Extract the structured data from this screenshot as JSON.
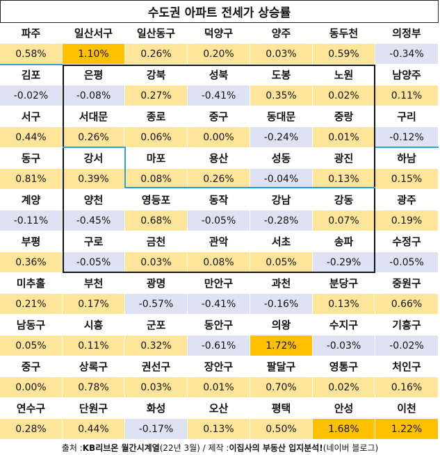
{
  "title": "수도권 아파트 전세가 상승률",
  "colors": {
    "positive": "#ffe599",
    "negative": "#dde3f3",
    "highlight": "#ffc000",
    "divider": "#2e9fd8"
  },
  "rows": [
    [
      [
        "파주",
        "0.58%"
      ],
      [
        "일산서구",
        "1.10%"
      ],
      [
        "일산동구",
        "0.26%"
      ],
      [
        "덕양구",
        "0.20%"
      ],
      [
        "양주",
        "0.03%"
      ],
      [
        "동두천",
        "0.59%"
      ],
      [
        "의정부",
        "-0.34%"
      ]
    ],
    [
      [
        "김포",
        "-0.02%"
      ],
      [
        "은평",
        "-0.08%"
      ],
      [
        "강북",
        "0.27%"
      ],
      [
        "성북",
        "-0.41%"
      ],
      [
        "도봉",
        "0.35%"
      ],
      [
        "노원",
        "0.02%"
      ],
      [
        "남양주",
        "0.11%"
      ]
    ],
    [
      [
        "서구",
        "0.44%"
      ],
      [
        "서대문",
        "0.26%"
      ],
      [
        "종로",
        "0.06%"
      ],
      [
        "중구",
        "0.00%"
      ],
      [
        "동대문",
        "-0.24%"
      ],
      [
        "중랑",
        "0.01%"
      ],
      [
        "구리",
        "-0.12%"
      ]
    ],
    [
      [
        "동구",
        "0.81%"
      ],
      [
        "강서",
        "0.39%"
      ],
      [
        "마포",
        "0.08%"
      ],
      [
        "용산",
        "0.26%"
      ],
      [
        "성동",
        "-0.04%"
      ],
      [
        "광진",
        "0.13%"
      ],
      [
        "하남",
        "0.15%"
      ]
    ],
    [
      [
        "계양",
        "-0.11%"
      ],
      [
        "양천",
        "-0.45%"
      ],
      [
        "영등포",
        "0.68%"
      ],
      [
        "동작",
        "-0.05%"
      ],
      [
        "강남",
        "-0.28%"
      ],
      [
        "강동",
        "0.07%"
      ],
      [
        "광주",
        "0.19%"
      ]
    ],
    [
      [
        "부평",
        "0.36%"
      ],
      [
        "구로",
        "-0.05%"
      ],
      [
        "금천",
        "0.03%"
      ],
      [
        "관악",
        "0.08%"
      ],
      [
        "서초",
        "0.05%"
      ],
      [
        "송파",
        "-0.29%"
      ],
      [
        "수정구",
        "-0.05%"
      ]
    ],
    [
      [
        "미추홀",
        "0.21%"
      ],
      [
        "부천",
        "0.17%"
      ],
      [
        "광명",
        "-0.57%"
      ],
      [
        "만안구",
        "-0.41%"
      ],
      [
        "과천",
        "-0.16%"
      ],
      [
        "분당구",
        "0.13%"
      ],
      [
        "중원구",
        "0.66%"
      ]
    ],
    [
      [
        "남동구",
        "0.05%"
      ],
      [
        "시흥",
        "0.11%"
      ],
      [
        "군포",
        "0.32%"
      ],
      [
        "동안구",
        "-0.61%"
      ],
      [
        "의왕",
        "1.72%"
      ],
      [
        "수지구",
        "-0.03%"
      ],
      [
        "기흥구",
        "-0.02%"
      ]
    ],
    [
      [
        "중구",
        "0.00%"
      ],
      [
        "상록구",
        "0.78%"
      ],
      [
        "권선구",
        "0.03%"
      ],
      [
        "장안구",
        "0.01%"
      ],
      [
        "팔달구",
        "0.70%"
      ],
      [
        "영통구",
        "0.02%"
      ],
      [
        "처인구",
        "0.16%"
      ]
    ],
    [
      [
        "연수구",
        "0.28%"
      ],
      [
        "단원구",
        "0.44%"
      ],
      [
        "화성",
        "-0.17%"
      ],
      [
        "오산",
        "0.13%"
      ],
      [
        "평택",
        "0.50%"
      ],
      [
        "안성",
        "1.68%"
      ],
      [
        "이천",
        "1.22%"
      ]
    ]
  ],
  "highlights": [
    "1.10%",
    "1.72%",
    "1.68%",
    "1.22%"
  ],
  "footer": {
    "prefix": "출처 : ",
    "source": "KB리브온 월간시계열",
    "date": " (22년 3월) / 제작 : ",
    "author": "이집사의 부동산 입지분석!",
    "suffix": " (네이버 블로그)"
  }
}
